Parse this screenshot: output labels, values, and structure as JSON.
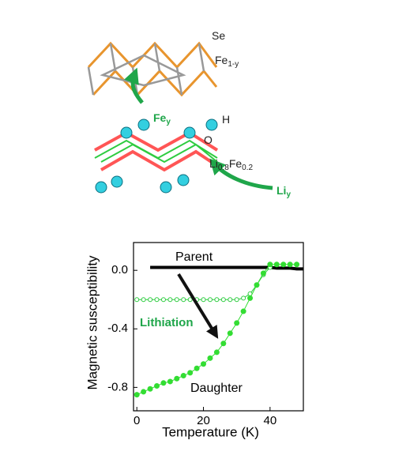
{
  "diagram": {
    "labels": [
      {
        "parts": [
          {
            "text": "Se"
          }
        ],
        "color": "#222",
        "bold": false
      },
      {
        "parts": [
          {
            "text": "Fe"
          },
          {
            "text": "1-y",
            "sub": true
          }
        ],
        "color": "#222",
        "bold": false
      },
      {
        "parts": [
          {
            "text": "Fe"
          },
          {
            "text": "y",
            "sub": true
          }
        ],
        "color": "#1fa64a",
        "bold": true
      },
      {
        "parts": [
          {
            "text": "H"
          }
        ],
        "color": "#222",
        "bold": false
      },
      {
        "parts": [
          {
            "text": "O"
          }
        ],
        "color": "#222",
        "bold": false
      },
      {
        "parts": [
          {
            "text": "Li"
          },
          {
            "text": "0.8",
            "sub": true
          },
          {
            "text": "Fe"
          },
          {
            "text": "0.2",
            "sub": true
          }
        ],
        "color": "#222",
        "bold": false
      },
      {
        "parts": [
          {
            "text": "Li"
          },
          {
            "text": "y",
            "sub": true
          }
        ],
        "color": "#1fa64a",
        "bold": true
      }
    ]
  },
  "chart_data": {
    "type": "line",
    "x_label": "Temperature (K)",
    "y_label": "Magnetic susceptibility",
    "xlim": [
      -1,
      50
    ],
    "ylim": [
      -0.96,
      0.19
    ],
    "xticks": [
      0,
      20,
      40
    ],
    "yticks": [
      -0.8,
      -0.4,
      {
        "value": 0,
        "label": "0.0"
      }
    ],
    "x": [
      0,
      2,
      4,
      6,
      8,
      10,
      12,
      14,
      16,
      18,
      20,
      22,
      24,
      26,
      28,
      30,
      32,
      34,
      36,
      38,
      40,
      42,
      44,
      46,
      48,
      50
    ],
    "series": [
      {
        "name": "Parent",
        "color": "#000000",
        "marker": "none",
        "values": [
          null,
          null,
          0.02,
          0.02,
          0.02,
          0.02,
          0.02,
          0.02,
          0.02,
          0.02,
          0.02,
          0.02,
          0.02,
          0.02,
          0.02,
          0.02,
          0.02,
          0.02,
          0.02,
          0.02,
          0.02,
          0.015,
          0.015,
          0.015,
          0.01,
          0.01
        ]
      },
      {
        "name": "Lithiation",
        "color": "#2ecc40",
        "marker": "open",
        "values": [
          -0.2,
          -0.2,
          -0.2,
          -0.2,
          -0.2,
          -0.2,
          -0.2,
          -0.2,
          -0.2,
          -0.2,
          -0.2,
          -0.2,
          -0.2,
          -0.2,
          -0.2,
          -0.2,
          -0.19,
          -0.16,
          -0.1,
          -0.03,
          0.02,
          null,
          null,
          null,
          null,
          null
        ]
      },
      {
        "name": "Daughter",
        "color": "#33dd33",
        "marker": "filled",
        "values": [
          -0.85,
          -0.83,
          -0.81,
          -0.79,
          -0.77,
          -0.76,
          -0.74,
          -0.72,
          -0.7,
          -0.67,
          -0.64,
          -0.6,
          -0.56,
          -0.5,
          -0.43,
          -0.36,
          -0.28,
          -0.19,
          -0.1,
          -0.02,
          0.04,
          0.04,
          0.04,
          0.04,
          0.04,
          null
        ]
      }
    ]
  }
}
